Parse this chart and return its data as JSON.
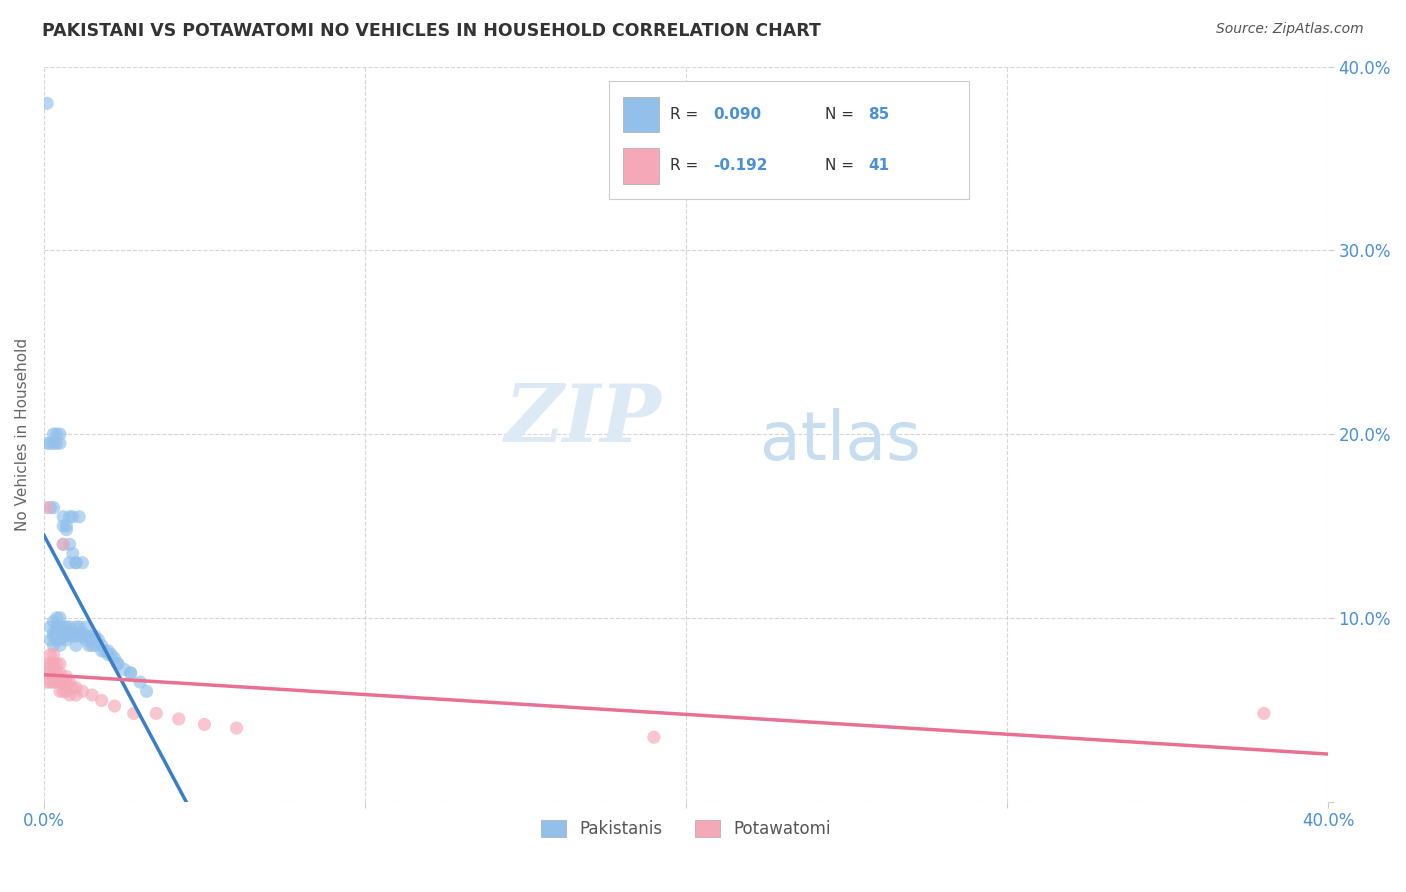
{
  "title": "PAKISTANI VS POTAWATOMI NO VEHICLES IN HOUSEHOLD CORRELATION CHART",
  "source": "Source: ZipAtlas.com",
  "ylabel": "No Vehicles in Household",
  "legend_pakistani": "Pakistanis",
  "legend_potawatomi": "Potawatomi",
  "R_pakistani": 0.09,
  "N_pakistani": 85,
  "R_potawatomi": -0.192,
  "N_potawatomi": 41,
  "color_pakistani": "#92C0EA",
  "color_potawatomi": "#F4A8B8",
  "line_color_pakistani": "#3B7EC8",
  "line_color_potawatomi": "#E87090",
  "line_color_dashed": "#A8CBEA",
  "watermark_zip": "ZIP",
  "watermark_atlas": "atlas",
  "background_color": "#ffffff",
  "pakistani_x": [
    0.001,
    0.002,
    0.002,
    0.002,
    0.003,
    0.003,
    0.003,
    0.003,
    0.003,
    0.004,
    0.004,
    0.004,
    0.004,
    0.004,
    0.005,
    0.005,
    0.005,
    0.005,
    0.005,
    0.005,
    0.006,
    0.006,
    0.006,
    0.006,
    0.006,
    0.007,
    0.007,
    0.007,
    0.007,
    0.007,
    0.008,
    0.008,
    0.008,
    0.008,
    0.009,
    0.009,
    0.009,
    0.01,
    0.01,
    0.01,
    0.01,
    0.011,
    0.011,
    0.011,
    0.012,
    0.012,
    0.012,
    0.013,
    0.013,
    0.014,
    0.014,
    0.015,
    0.015,
    0.016,
    0.016,
    0.017,
    0.018,
    0.019,
    0.02,
    0.021,
    0.022,
    0.023,
    0.025,
    0.027,
    0.03,
    0.001,
    0.002,
    0.003,
    0.003,
    0.004,
    0.004,
    0.005,
    0.005,
    0.006,
    0.007,
    0.008,
    0.009,
    0.01,
    0.012,
    0.015,
    0.018,
    0.02,
    0.023,
    0.027,
    0.032
  ],
  "pakistani_y": [
    0.38,
    0.095,
    0.088,
    0.16,
    0.092,
    0.085,
    0.09,
    0.098,
    0.16,
    0.092,
    0.088,
    0.095,
    0.09,
    0.1,
    0.092,
    0.088,
    0.085,
    0.095,
    0.1,
    0.09,
    0.155,
    0.092,
    0.095,
    0.09,
    0.14,
    0.092,
    0.088,
    0.095,
    0.09,
    0.15,
    0.095,
    0.155,
    0.092,
    0.13,
    0.09,
    0.155,
    0.092,
    0.09,
    0.095,
    0.085,
    0.13,
    0.092,
    0.155,
    0.095,
    0.09,
    0.092,
    0.13,
    0.088,
    0.095,
    0.09,
    0.085,
    0.09,
    0.088,
    0.09,
    0.085,
    0.088,
    0.085,
    0.082,
    0.082,
    0.08,
    0.078,
    0.075,
    0.072,
    0.07,
    0.065,
    0.195,
    0.195,
    0.195,
    0.2,
    0.2,
    0.195,
    0.195,
    0.2,
    0.15,
    0.148,
    0.14,
    0.135,
    0.13,
    0.09,
    0.085,
    0.082,
    0.08,
    0.075,
    0.07,
    0.06
  ],
  "potawatomi_x": [
    0.0005,
    0.001,
    0.001,
    0.001,
    0.002,
    0.002,
    0.002,
    0.002,
    0.003,
    0.003,
    0.003,
    0.003,
    0.004,
    0.004,
    0.004,
    0.005,
    0.005,
    0.005,
    0.005,
    0.006,
    0.006,
    0.006,
    0.007,
    0.007,
    0.007,
    0.008,
    0.008,
    0.009,
    0.01,
    0.01,
    0.012,
    0.015,
    0.018,
    0.022,
    0.028,
    0.035,
    0.042,
    0.05,
    0.06,
    0.38,
    0.19
  ],
  "potawatomi_y": [
    0.075,
    0.07,
    0.065,
    0.16,
    0.07,
    0.065,
    0.075,
    0.08,
    0.07,
    0.065,
    0.075,
    0.08,
    0.065,
    0.07,
    0.075,
    0.065,
    0.06,
    0.07,
    0.075,
    0.065,
    0.06,
    0.14,
    0.065,
    0.06,
    0.068,
    0.065,
    0.058,
    0.062,
    0.062,
    0.058,
    0.06,
    0.058,
    0.055,
    0.052,
    0.048,
    0.048,
    0.045,
    0.042,
    0.04,
    0.048,
    0.035
  ],
  "xlim": [
    0.0,
    0.4
  ],
  "ylim": [
    0.0,
    0.4
  ],
  "xtick_vals": [
    0.0,
    0.1,
    0.2,
    0.3,
    0.4
  ],
  "ytick_vals": [
    0.0,
    0.1,
    0.2,
    0.3,
    0.4
  ]
}
